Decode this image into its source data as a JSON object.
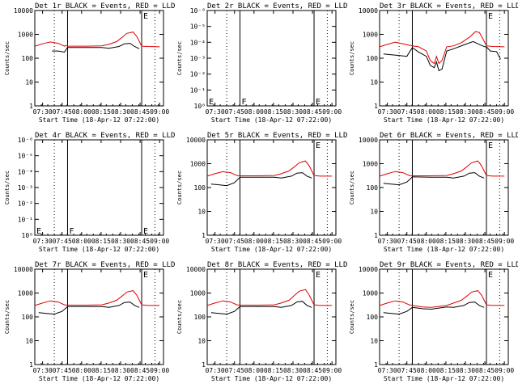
{
  "page": {
    "background": "#ffffff",
    "series_colors": {
      "events": "#000000",
      "lld": "#e00000"
    }
  },
  "chart_data": [
    {
      "type": "line",
      "title": "Det 1r BLACK = Events, RED = LLD",
      "xlabel": "Start Time (18-Apr-12 07:22:00)",
      "ylabel": "Counts/sec",
      "xlim": [
        7.4,
        9.05
      ],
      "x_ticks": [
        7.5,
        7.75,
        8.0,
        8.25,
        8.5,
        8.75,
        9.0
      ],
      "x_ticklabels": [
        "07:30",
        "07:45",
        "08:00",
        "08:15",
        "08:30",
        "08:45",
        "09:00"
      ],
      "yscale": "log",
      "ylim": [
        1,
        10000
      ],
      "y_ticks": [
        1,
        10,
        100,
        1000,
        10000
      ],
      "y_ticklabels": [
        "1",
        "10",
        "100",
        "1000",
        "10000"
      ],
      "solid_vlines": [
        7.82,
        8.77
      ],
      "dotted_vlines": [
        7.65,
        8.94
      ],
      "text_marks": [
        {
          "text": "E",
          "x": 8.77,
          "y": 10000
        }
      ],
      "series": [
        {
          "name": "Events",
          "color": "#000000",
          "x": [
            7.62,
            7.7,
            7.78,
            7.82,
            7.82,
            8.06,
            8.26,
            8.35,
            8.48,
            8.55,
            8.62,
            8.68,
            8.74
          ],
          "y": [
            200,
            200,
            180,
            290,
            280,
            280,
            280,
            260,
            310,
            400,
            420,
            310,
            250
          ]
        },
        {
          "name": "LLD",
          "color": "#e00000",
          "x": [
            7.4,
            7.5,
            7.6,
            7.7,
            7.78,
            7.82,
            7.82,
            8.06,
            8.26,
            8.35,
            8.45,
            8.52,
            8.58,
            8.66,
            8.71,
            8.77,
            8.85,
            9.0
          ],
          "y": [
            320,
            400,
            480,
            420,
            320,
            350,
            320,
            320,
            330,
            380,
            500,
            750,
            1100,
            1250,
            800,
            320,
            310,
            300
          ]
        }
      ]
    },
    {
      "type": "line",
      "title": "Det 2r BLACK = Events, RED = LLD",
      "xlabel": "Start Time (18-Apr-12 07:22:00)",
      "ylabel": "Counts/sec",
      "xlim": [
        7.4,
        9.05
      ],
      "x_ticks": [
        7.5,
        7.75,
        8.0,
        8.25,
        8.5,
        8.75,
        9.0
      ],
      "x_ticklabels": [
        "07:30",
        "07:45",
        "08:00",
        "08:15",
        "08:30",
        "08:45",
        "09:00"
      ],
      "yscale": "log",
      "ylim": [
        1,
        1e-06
      ],
      "y_ticks": [
        1,
        0.1,
        0.01,
        0.001,
        0.0001,
        1e-05,
        1e-06
      ],
      "y_ticklabels": [
        "10⁰",
        "10⁻¹",
        "10⁻²",
        "10⁻³",
        "10⁻⁴",
        "10⁻⁵",
        "10⁻⁶"
      ],
      "solid_vlines": [
        7.82,
        8.77
      ],
      "dotted_vlines": [
        7.65,
        8.94
      ],
      "text_marks": [
        {
          "text": "E",
          "x": 7.4,
          "y": 0.25
        },
        {
          "text": "F",
          "x": 7.82,
          "y": 0.25
        },
        {
          "text": "E",
          "x": 8.77,
          "y": 0.25
        }
      ],
      "series": []
    },
    {
      "type": "line",
      "title": "Det 3r BLACK = Events, RED = LLD",
      "xlabel": "Start Time (18-Apr-12 07:22:00)",
      "ylabel": "Counts/sec",
      "xlim": [
        7.4,
        9.05
      ],
      "x_ticks": [
        7.5,
        7.75,
        8.0,
        8.25,
        8.5,
        8.75,
        9.0
      ],
      "x_ticklabels": [
        "07:30",
        "07:45",
        "08:00",
        "08:15",
        "08:30",
        "08:45",
        "09:00"
      ],
      "yscale": "log",
      "ylim": [
        1,
        10000
      ],
      "y_ticks": [
        1,
        10,
        100,
        1000,
        10000
      ],
      "y_ticklabels": [
        "1",
        "10",
        "100",
        "1000",
        "10000"
      ],
      "solid_vlines": [
        7.82,
        8.77
      ],
      "dotted_vlines": [
        7.65,
        8.94
      ],
      "text_marks": [
        {
          "text": "E",
          "x": 8.77,
          "y": 10000
        }
      ],
      "series": [
        {
          "name": "Events",
          "color": "#000000",
          "x": [
            7.45,
            7.55,
            7.65,
            7.75,
            7.82,
            7.9,
            8.0,
            8.05,
            8.1,
            8.13,
            8.16,
            8.2,
            8.26,
            8.35,
            8.5,
            8.6,
            8.7,
            8.75,
            8.77,
            8.82,
            8.9,
            8.95
          ],
          "y": [
            150,
            140,
            130,
            120,
            280,
            180,
            120,
            50,
            40,
            70,
            30,
            35,
            200,
            250,
            380,
            500,
            350,
            300,
            300,
            200,
            190,
            90
          ]
        },
        {
          "name": "LLD",
          "color": "#e00000",
          "x": [
            7.4,
            7.5,
            7.6,
            7.7,
            7.82,
            7.9,
            8.0,
            8.05,
            8.1,
            8.13,
            8.16,
            8.2,
            8.26,
            8.35,
            8.45,
            8.55,
            8.63,
            8.68,
            8.72,
            8.77,
            8.85,
            9.0
          ],
          "y": [
            300,
            380,
            470,
            400,
            330,
            300,
            200,
            80,
            60,
            120,
            60,
            80,
            300,
            330,
            450,
            750,
            1300,
            1200,
            700,
            330,
            310,
            300
          ]
        }
      ]
    },
    {
      "type": "line",
      "title": "Det 4r BLACK = Events, RED = LLD",
      "xlabel": "Start Time (18-Apr-12 07:22:00)",
      "ylabel": "Counts/sec",
      "xlim": [
        7.4,
        9.05
      ],
      "x_ticks": [
        7.5,
        7.75,
        8.0,
        8.25,
        8.5,
        8.75,
        9.0
      ],
      "x_ticklabels": [
        "07:30",
        "07:45",
        "08:00",
        "08:15",
        "08:30",
        "08:45",
        "09:00"
      ],
      "yscale": "log",
      "ylim": [
        1,
        1e-06
      ],
      "y_ticks": [
        1,
        0.1,
        0.01,
        0.001,
        0.0001,
        1e-05,
        1e-06
      ],
      "y_ticklabels": [
        "10⁰",
        "10⁻¹",
        "10⁻²",
        "10⁻³",
        "10⁻⁴",
        "10⁻⁵",
        "10⁻⁶"
      ],
      "solid_vlines": [
        7.82,
        8.77
      ],
      "dotted_vlines": [
        7.65,
        8.94
      ],
      "text_marks": [
        {
          "text": "E",
          "x": 7.4,
          "y": 0.25
        },
        {
          "text": "F",
          "x": 7.82,
          "y": 0.25
        },
        {
          "text": "E",
          "x": 8.77,
          "y": 0.25
        }
      ],
      "series": []
    },
    {
      "type": "line",
      "title": "Det 5r BLACK = Events, RED = LLD",
      "xlabel": "Start Time (18-Apr-12 07:22:00)",
      "ylabel": "Counts/sec",
      "xlim": [
        7.4,
        9.05
      ],
      "x_ticks": [
        7.5,
        7.75,
        8.0,
        8.25,
        8.5,
        8.75,
        9.0
      ],
      "x_ticklabels": [
        "07:30",
        "07:45",
        "08:00",
        "08:15",
        "08:30",
        "08:45",
        "09:00"
      ],
      "yscale": "log",
      "ylim": [
        1,
        10000
      ],
      "y_ticks": [
        1,
        10,
        100,
        1000,
        10000
      ],
      "y_ticklabels": [
        "1",
        "10",
        "100",
        "1000",
        "10000"
      ],
      "solid_vlines": [
        7.82,
        8.77
      ],
      "dotted_vlines": [
        7.65,
        8.94
      ],
      "text_marks": [
        {
          "text": "E",
          "x": 8.77,
          "y": 10000
        }
      ],
      "series": [
        {
          "name": "Events",
          "color": "#000000",
          "x": [
            7.45,
            7.55,
            7.65,
            7.75,
            7.82,
            8.06,
            8.26,
            8.35,
            8.48,
            8.55,
            8.62,
            8.68,
            8.74
          ],
          "y": [
            140,
            130,
            120,
            160,
            270,
            270,
            270,
            250,
            300,
            400,
            420,
            300,
            250
          ]
        },
        {
          "name": "LLD",
          "color": "#e00000",
          "x": [
            7.4,
            7.5,
            7.6,
            7.7,
            7.78,
            7.82,
            8.06,
            8.26,
            8.35,
            8.45,
            8.52,
            8.58,
            8.66,
            8.71,
            8.77,
            8.85,
            9.0
          ],
          "y": [
            300,
            380,
            460,
            420,
            320,
            310,
            310,
            320,
            380,
            500,
            750,
            1100,
            1300,
            800,
            320,
            300,
            300
          ]
        }
      ]
    },
    {
      "type": "line",
      "title": "Det 6r BLACK = Events, RED = LLD",
      "xlabel": "Start Time (18-Apr-12 07:22:00)",
      "ylabel": "Counts/sec",
      "xlim": [
        7.4,
        9.05
      ],
      "x_ticks": [
        7.5,
        7.75,
        8.0,
        8.25,
        8.5,
        8.75,
        9.0
      ],
      "x_ticklabels": [
        "07:30",
        "07:45",
        "08:00",
        "08:15",
        "08:30",
        "08:45",
        "09:00"
      ],
      "yscale": "log",
      "ylim": [
        1,
        10000
      ],
      "y_ticks": [
        1,
        10,
        100,
        1000,
        10000
      ],
      "y_ticklabels": [
        "1",
        "10",
        "100",
        "1000",
        "10000"
      ],
      "solid_vlines": [
        7.82,
        8.77
      ],
      "dotted_vlines": [
        7.65,
        8.94
      ],
      "text_marks": [
        {
          "text": "E",
          "x": 8.77,
          "y": 10000
        }
      ],
      "series": [
        {
          "name": "Events",
          "color": "#000000",
          "x": [
            7.45,
            7.55,
            7.65,
            7.75,
            7.82,
            8.06,
            8.26,
            8.35,
            8.48,
            8.55,
            8.62,
            8.68,
            8.74
          ],
          "y": [
            150,
            140,
            130,
            170,
            280,
            270,
            270,
            250,
            300,
            400,
            420,
            300,
            250
          ]
        },
        {
          "name": "LLD",
          "color": "#e00000",
          "x": [
            7.4,
            7.5,
            7.6,
            7.7,
            7.78,
            7.82,
            8.06,
            8.26,
            8.35,
            8.45,
            8.52,
            8.58,
            8.66,
            8.71,
            8.77,
            8.85,
            9.0
          ],
          "y": [
            300,
            380,
            470,
            420,
            320,
            310,
            310,
            320,
            380,
            500,
            750,
            1100,
            1300,
            800,
            320,
            300,
            300
          ]
        }
      ]
    },
    {
      "type": "line",
      "title": "Det 7r BLACK = Events, RED = LLD",
      "xlabel": "Start Time (18-Apr-12 07:22:00)",
      "ylabel": "Counts/sec",
      "xlim": [
        7.4,
        9.05
      ],
      "x_ticks": [
        7.5,
        7.75,
        8.0,
        8.25,
        8.5,
        8.75,
        9.0
      ],
      "x_ticklabels": [
        "07:30",
        "07:45",
        "08:00",
        "08:15",
        "08:30",
        "08:45",
        "09:00"
      ],
      "yscale": "log",
      "ylim": [
        1,
        10000
      ],
      "y_ticks": [
        1,
        10,
        100,
        1000,
        10000
      ],
      "y_ticklabels": [
        "1",
        "10",
        "100",
        "1000",
        "10000"
      ],
      "solid_vlines": [
        7.82,
        8.77
      ],
      "dotted_vlines": [
        7.65,
        8.94
      ],
      "text_marks": [
        {
          "text": "E",
          "x": 8.77,
          "y": 10000
        }
      ],
      "series": [
        {
          "name": "Events",
          "color": "#000000",
          "x": [
            7.45,
            7.55,
            7.65,
            7.75,
            7.82,
            8.06,
            8.26,
            8.35,
            8.48,
            8.55,
            8.62,
            8.68,
            8.74
          ],
          "y": [
            150,
            140,
            130,
            170,
            270,
            270,
            270,
            250,
            300,
            400,
            420,
            300,
            250
          ]
        },
        {
          "name": "LLD",
          "color": "#e00000",
          "x": [
            7.4,
            7.5,
            7.6,
            7.7,
            7.78,
            7.82,
            8.06,
            8.26,
            8.35,
            8.45,
            8.52,
            8.58,
            8.66,
            8.71,
            8.77,
            8.85,
            9.0
          ],
          "y": [
            300,
            380,
            470,
            420,
            320,
            310,
            310,
            320,
            380,
            500,
            750,
            1100,
            1250,
            800,
            320,
            300,
            300
          ]
        }
      ]
    },
    {
      "type": "line",
      "title": "Det 8r BLACK = Events, RED = LLD",
      "xlabel": "Start Time (18-Apr-12 07:22:00)",
      "ylabel": "Counts/sec",
      "xlim": [
        7.4,
        9.05
      ],
      "x_ticks": [
        7.5,
        7.75,
        8.0,
        8.25,
        8.5,
        8.75,
        9.0
      ],
      "x_ticklabels": [
        "07:30",
        "07:45",
        "08:00",
        "08:15",
        "08:30",
        "08:45",
        "09:00"
      ],
      "yscale": "log",
      "ylim": [
        1,
        10000
      ],
      "y_ticks": [
        1,
        10,
        100,
        1000,
        10000
      ],
      "y_ticklabels": [
        "1",
        "10",
        "100",
        "1000",
        "10000"
      ],
      "solid_vlines": [
        7.82,
        8.77
      ],
      "dotted_vlines": [
        7.65,
        8.94
      ],
      "text_marks": [
        {
          "text": "E",
          "x": 8.77,
          "y": 10000
        }
      ],
      "series": [
        {
          "name": "Events",
          "color": "#000000",
          "x": [
            7.45,
            7.55,
            7.65,
            7.75,
            7.82,
            8.06,
            8.26,
            8.35,
            8.48,
            8.55,
            8.62,
            8.68,
            8.74
          ],
          "y": [
            150,
            140,
            130,
            170,
            270,
            270,
            270,
            250,
            300,
            420,
            450,
            300,
            250
          ]
        },
        {
          "name": "LLD",
          "color": "#e00000",
          "x": [
            7.4,
            7.5,
            7.6,
            7.7,
            7.78,
            7.82,
            8.06,
            8.26,
            8.35,
            8.45,
            8.52,
            8.58,
            8.66,
            8.71,
            8.77,
            8.85,
            9.0
          ],
          "y": [
            300,
            380,
            470,
            420,
            320,
            310,
            310,
            320,
            380,
            500,
            800,
            1200,
            1400,
            800,
            320,
            300,
            300
          ]
        }
      ]
    },
    {
      "type": "line",
      "title": "Det 9r BLACK = Events, RED = LLD",
      "xlabel": "Start Time (18-Apr-12 07:22:00)",
      "ylabel": "Counts/sec",
      "xlim": [
        7.4,
        9.05
      ],
      "x_ticks": [
        7.5,
        7.75,
        8.0,
        8.25,
        8.5,
        8.75,
        9.0
      ],
      "x_ticklabels": [
        "07:30",
        "07:45",
        "08:00",
        "08:15",
        "08:30",
        "08:45",
        "09:00"
      ],
      "yscale": "log",
      "ylim": [
        1,
        10000
      ],
      "y_ticks": [
        1,
        10,
        100,
        1000,
        10000
      ],
      "y_ticklabels": [
        "1",
        "10",
        "100",
        "1000",
        "10000"
      ],
      "solid_vlines": [
        7.82,
        8.77
      ],
      "dotted_vlines": [
        7.65,
        8.94
      ],
      "text_marks": [
        {
          "text": "E",
          "x": 8.77,
          "y": 10000
        }
      ],
      "series": [
        {
          "name": "Events",
          "color": "#000000",
          "x": [
            7.45,
            7.55,
            7.65,
            7.75,
            7.82,
            7.95,
            8.06,
            8.15,
            8.26,
            8.35,
            8.48,
            8.55,
            8.62,
            8.68,
            8.74
          ],
          "y": [
            150,
            140,
            130,
            170,
            250,
            220,
            210,
            230,
            260,
            250,
            300,
            400,
            420,
            300,
            250
          ]
        },
        {
          "name": "LLD",
          "color": "#e00000",
          "x": [
            7.4,
            7.5,
            7.6,
            7.7,
            7.78,
            7.82,
            7.95,
            8.06,
            8.15,
            8.26,
            8.35,
            8.45,
            8.52,
            8.58,
            8.66,
            8.71,
            8.77,
            8.85,
            9.0
          ],
          "y": [
            300,
            380,
            470,
            420,
            320,
            300,
            260,
            250,
            270,
            300,
            380,
            500,
            750,
            1100,
            1250,
            800,
            320,
            300,
            300
          ]
        }
      ]
    }
  ]
}
